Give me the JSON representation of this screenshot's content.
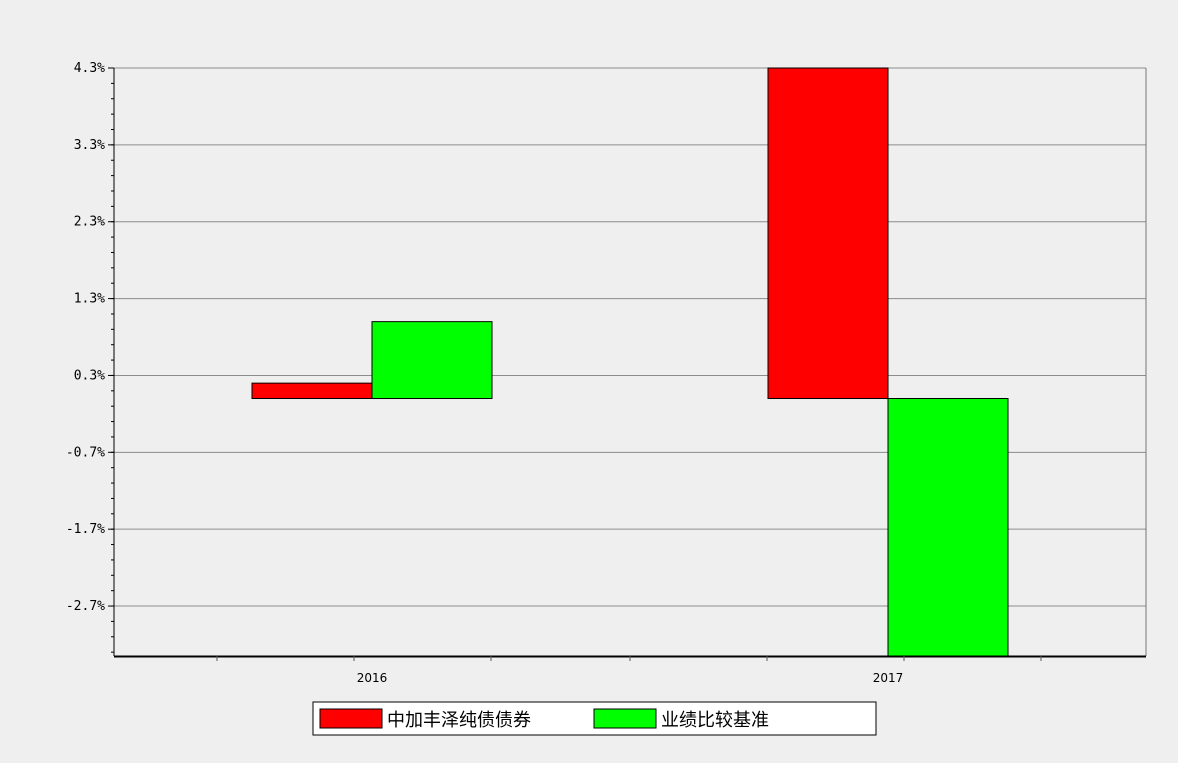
{
  "chart_data": {
    "type": "bar",
    "categories": [
      "2016",
      "2017"
    ],
    "series": [
      {
        "name": "中加丰泽纯债债券",
        "color": "#ff0000",
        "values": [
          0.2,
          4.3
        ]
      },
      {
        "name": "业绩比较基准",
        "color": "#00ff00",
        "values": [
          1.0,
          -3.36
        ]
      }
    ],
    "y_ticks": [
      "4.3%",
      "3.3%",
      "2.3%",
      "1.3%",
      "0.3%",
      "-0.7%",
      "-1.7%",
      "-2.7%"
    ],
    "y_tick_values": [
      4.3,
      3.3,
      2.3,
      1.3,
      0.3,
      -0.7,
      -1.7,
      -2.7
    ],
    "ylim": [
      -3.35,
      4.3
    ],
    "baseline": 0.0,
    "grid": true,
    "legend_position": "bottom-center"
  }
}
